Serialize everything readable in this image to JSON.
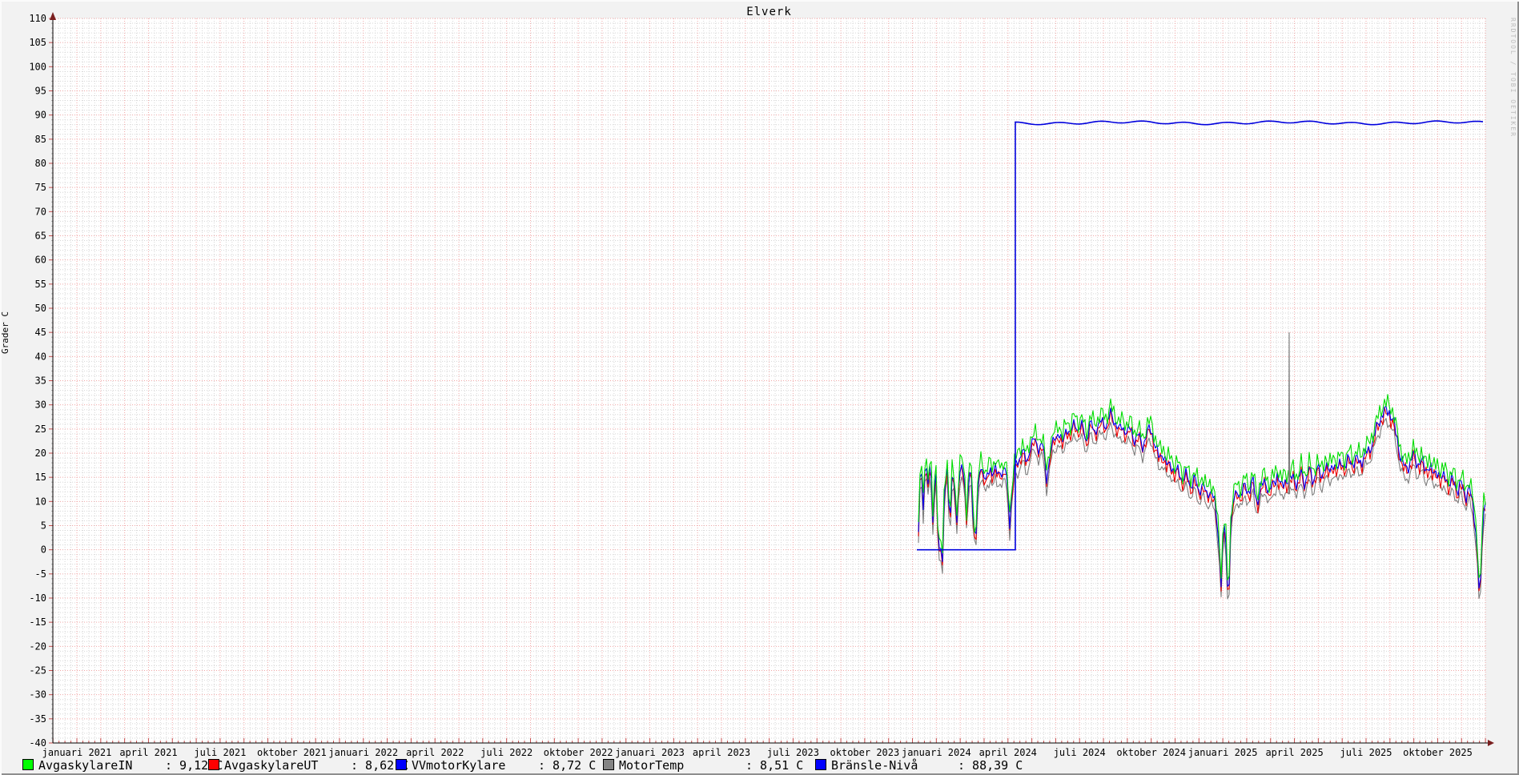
{
  "header": {
    "title": "Elverk"
  },
  "watermark": "RRDTOOL / TOBI OETIKER",
  "axes": {
    "y_title": "Grader C"
  },
  "chart_data": {
    "type": "line",
    "title": "Elverk",
    "xlabel": "",
    "ylabel": "Grader C",
    "ylim": [
      -40,
      110
    ],
    "y_tick_step": 5,
    "grid": true,
    "legend_position": "bottom",
    "x_tick_labels": [
      "januari 2021",
      "april 2021",
      "juli 2021",
      "oktober 2021",
      "januari 2022",
      "april 2022",
      "juli 2022",
      "oktober 2022",
      "januari 2023",
      "april 2023",
      "juli 2023",
      "oktober 2023",
      "januari 2024",
      "april 2024",
      "juli 2024",
      "oktober 2024",
      "januari 2025",
      "april 2025",
      "juli 2025",
      "oktober 2025"
    ],
    "series": [
      {
        "name": "AvgaskylareIN",
        "line_color": "#00dc00",
        "swatch": "#00ff00",
        "legend_value": ": 9,12 C",
        "offset": 2.3
      },
      {
        "name": "AvgaskylareUT",
        "line_color": "#ee0000",
        "swatch": "#ff0000",
        "legend_value": ": 8,62 C",
        "offset": 0
      },
      {
        "name": "VVmotorKylare",
        "line_color": "#0000f0",
        "swatch": "#0000ff",
        "legend_value": ": 8,72 C",
        "offset": 0.7
      },
      {
        "name": "MotorTemp",
        "line_color": "#7d7d7d",
        "swatch": "#848484",
        "legend_value": ": 8,51 C",
        "offset": -1.7
      },
      {
        "name": "Bränsle-Nivå",
        "line_color": "#0000dd",
        "swatch": "#0000ff",
        "legend_value": ": 88,39 C",
        "offset": 0,
        "role": "fuel"
      }
    ],
    "temp_base_anchors": [
      [
        1147,
        3
      ],
      [
        1149,
        13
      ],
      [
        1151,
        15
      ],
      [
        1153,
        8
      ],
      [
        1155,
        16
      ],
      [
        1157,
        17
      ],
      [
        1159,
        12
      ],
      [
        1161,
        16
      ],
      [
        1163,
        14
      ],
      [
        1165,
        5
      ],
      [
        1167,
        13
      ],
      [
        1169,
        15
      ],
      [
        1171,
        4
      ],
      [
        1172,
        -11
      ],
      [
        1174,
        10
      ],
      [
        1176,
        -11.5
      ],
      [
        1178,
        6
      ],
      [
        1180,
        13
      ],
      [
        1183,
        16
      ],
      [
        1186,
        3
      ],
      [
        1189,
        15
      ],
      [
        1192,
        14
      ],
      [
        1195,
        4
      ],
      [
        1198,
        15
      ],
      [
        1201,
        17
      ],
      [
        1204,
        16
      ],
      [
        1207,
        5
      ],
      [
        1210,
        14
      ],
      [
        1213,
        16
      ],
      [
        1216,
        3
      ],
      [
        1219,
        2.5
      ],
      [
        1222,
        14
      ],
      [
        1225,
        17
      ],
      [
        1228,
        15.5
      ],
      [
        1231,
        13
      ],
      [
        1234,
        15
      ],
      [
        1237,
        16.5
      ],
      [
        1240,
        15
      ],
      [
        1243,
        16
      ],
      [
        1246,
        14.5
      ],
      [
        1249,
        16
      ],
      [
        1252,
        15
      ],
      [
        1255,
        16
      ],
      [
        1258,
        13
      ],
      [
        1261,
        5
      ],
      [
        1264,
        12
      ],
      [
        1267,
        16
      ],
      [
        1272,
        18
      ],
      [
        1277,
        20
      ],
      [
        1282,
        17
      ],
      [
        1287,
        21
      ],
      [
        1292,
        22
      ],
      [
        1297,
        20.5
      ],
      [
        1302,
        21.5
      ],
      [
        1307,
        14
      ],
      [
        1312,
        20
      ],
      [
        1317,
        22
      ],
      [
        1322,
        24
      ],
      [
        1327,
        21
      ],
      [
        1332,
        25
      ],
      [
        1337,
        23
      ],
      [
        1342,
        26
      ],
      [
        1347,
        24
      ],
      [
        1352,
        25
      ],
      [
        1357,
        22
      ],
      [
        1362,
        25.5
      ],
      [
        1367,
        24
      ],
      [
        1372,
        25
      ],
      [
        1377,
        26
      ],
      [
        1382,
        25
      ],
      [
        1387,
        27.5
      ],
      [
        1392,
        26
      ],
      [
        1397,
        24
      ],
      [
        1402,
        25
      ],
      [
        1407,
        23.5
      ],
      [
        1412,
        24.5
      ],
      [
        1417,
        22
      ],
      [
        1422,
        23
      ],
      [
        1427,
        21
      ],
      [
        1430,
        22
      ],
      [
        1434,
        24
      ],
      [
        1438,
        24.5
      ],
      [
        1442,
        21
      ],
      [
        1447,
        18.5
      ],
      [
        1452,
        19.5
      ],
      [
        1457,
        16.5
      ],
      [
        1462,
        17.5
      ],
      [
        1467,
        15
      ],
      [
        1472,
        16
      ],
      [
        1477,
        13.5
      ],
      [
        1482,
        15
      ],
      [
        1487,
        12.5
      ],
      [
        1492,
        14
      ],
      [
        1497,
        11.5
      ],
      [
        1502,
        13
      ],
      [
        1507,
        10.5
      ],
      [
        1512,
        12
      ],
      [
        1517,
        9
      ],
      [
        1522,
        2
      ],
      [
        1525,
        -8
      ],
      [
        1528,
        5
      ],
      [
        1531,
        1
      ],
      [
        1534,
        -13
      ],
      [
        1537,
        4
      ],
      [
        1540,
        9
      ],
      [
        1545,
        12
      ],
      [
        1550,
        10
      ],
      [
        1555,
        13
      ],
      [
        1560,
        11
      ],
      [
        1565,
        13.5
      ],
      [
        1570,
        9
      ],
      [
        1575,
        12
      ],
      [
        1580,
        14
      ],
      [
        1585,
        11
      ],
      [
        1590,
        13
      ],
      [
        1595,
        15
      ],
      [
        1600,
        12
      ],
      [
        1605,
        14
      ],
      [
        1610,
        13
      ],
      [
        1615,
        15
      ],
      [
        1620,
        12.5
      ],
      [
        1625,
        15.5
      ],
      [
        1630,
        13
      ],
      [
        1635,
        16
      ],
      [
        1640,
        13.5
      ],
      [
        1645,
        16.5
      ],
      [
        1650,
        14
      ],
      [
        1655,
        17
      ],
      [
        1660,
        15
      ],
      [
        1665,
        17.5
      ],
      [
        1670,
        15.5
      ],
      [
        1675,
        18
      ],
      [
        1680,
        16
      ],
      [
        1685,
        18.5
      ],
      [
        1690,
        17
      ],
      [
        1695,
        18
      ],
      [
        1700,
        17.5
      ],
      [
        1705,
        19
      ],
      [
        1710,
        20
      ],
      [
        1715,
        22
      ],
      [
        1720,
        25
      ],
      [
        1725,
        27
      ],
      [
        1730,
        28
      ],
      [
        1735,
        28
      ],
      [
        1740,
        26
      ],
      [
        1745,
        22
      ],
      [
        1750,
        18
      ],
      [
        1755,
        16
      ],
      [
        1760,
        17
      ],
      [
        1765,
        19
      ],
      [
        1770,
        17
      ],
      [
        1775,
        18
      ],
      [
        1780,
        15.5
      ],
      [
        1785,
        17
      ],
      [
        1790,
        14.5
      ],
      [
        1795,
        16
      ],
      [
        1800,
        13.5
      ],
      [
        1805,
        15
      ],
      [
        1810,
        12.5
      ],
      [
        1815,
        14
      ],
      [
        1820,
        11.5
      ],
      [
        1825,
        13
      ],
      [
        1830,
        10.5
      ],
      [
        1835,
        12
      ],
      [
        1840,
        8
      ],
      [
        1844,
        2
      ],
      [
        1848,
        -12
      ],
      [
        1851,
        2
      ],
      [
        1853,
        8
      ],
      [
        1855,
        9
      ]
    ],
    "fuel_points": [
      [
        1145,
        0
      ],
      [
        1268,
        0
      ],
      [
        1268,
        88.4
      ],
      [
        1855,
        88.4
      ]
    ],
    "motortemp_spike": {
      "x": 1610,
      "top": 45,
      "base": 11.5
    },
    "noise_amplitude": 2.3
  }
}
